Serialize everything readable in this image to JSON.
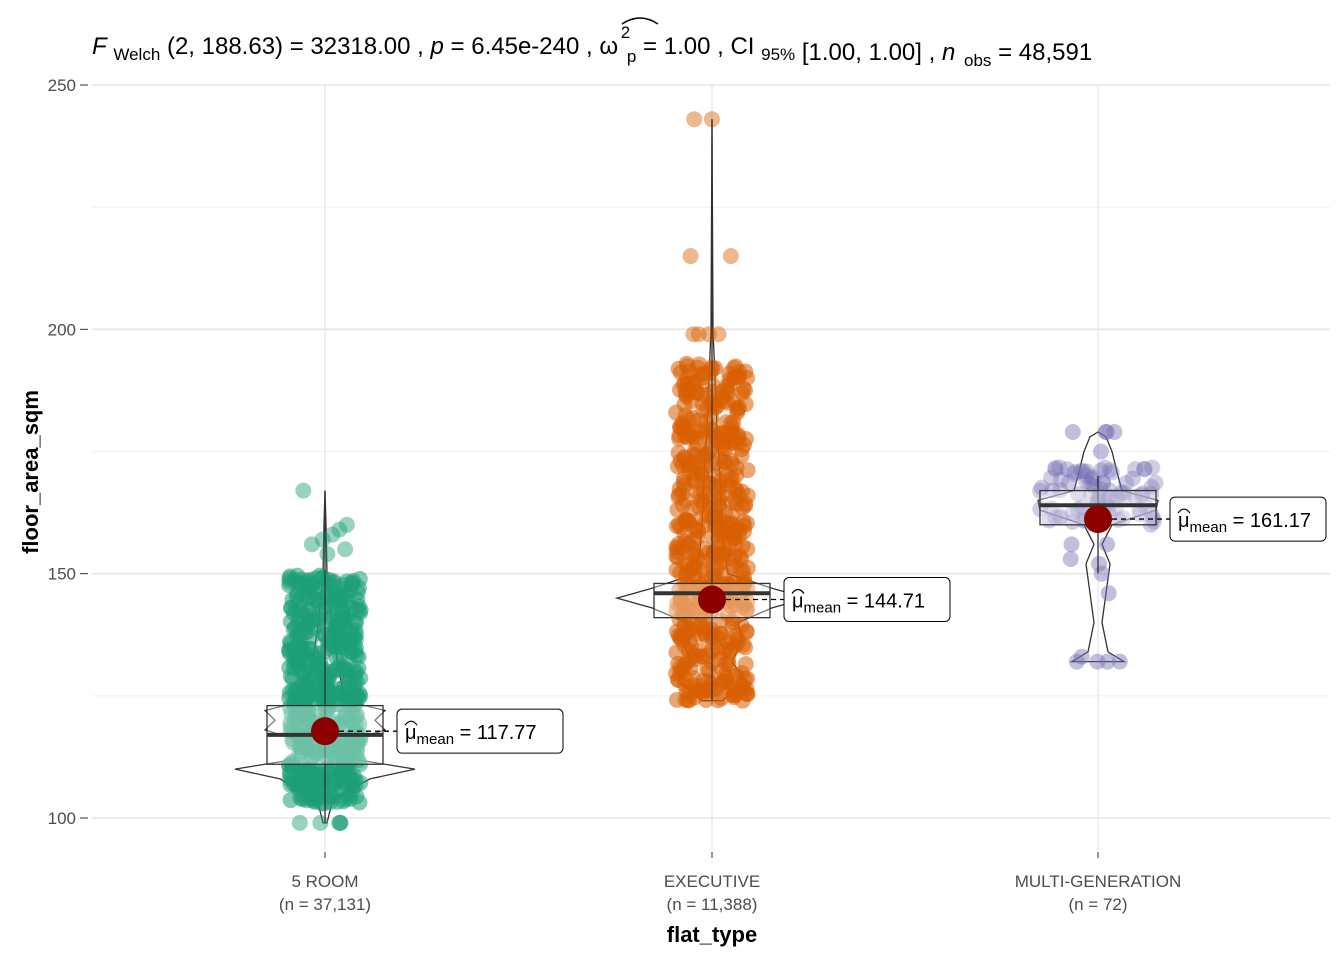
{
  "chart_data": {
    "type": "violin-box-scatter",
    "subtitle": {
      "stat_symbol": "F",
      "stat_subscript": "Welch",
      "df": "(2, 188.63)",
      "statistic": "32318.00",
      "p_symbol": "p",
      "p_value": "6.45e-240",
      "effsize_symbol": "ω",
      "effsize_sup": "2",
      "effsize_sub": "p",
      "effsize_value": "1.00",
      "ci_label": "CI",
      "ci_sub": "95%",
      "ci_value": "[1.00, 1.00]",
      "n_symbol": "n",
      "n_sub": "obs",
      "n_value": "48,591"
    },
    "xlabel": "flat_type",
    "ylabel": "floor_area_sqm",
    "ylim": [
      97,
      250
    ],
    "yticks": [
      100,
      150,
      200,
      250
    ],
    "grid": true,
    "categories": [
      "5 ROOM",
      "EXECUTIVE",
      "MULTI-GENERATION"
    ],
    "counts": [
      "(n = 37,131)",
      "(n = 11,388)",
      "(n = 72)"
    ],
    "colors": [
      "#1b9e77",
      "#d95f02",
      "#7570b3"
    ],
    "means": [
      117.77,
      144.71,
      161.17
    ],
    "mean_labels": [
      "117.77",
      "144.71",
      "161.17"
    ],
    "mean_label_prefix": "μ",
    "mean_label_sub": "mean",
    "boxes": [
      {
        "q1": 111,
        "median": 117,
        "q3": 123,
        "whisker_low": 99,
        "whisker_high": 167
      },
      {
        "q1": 141,
        "median": 146,
        "q3": 148,
        "whisker_low": 124,
        "whisker_high": 243
      },
      {
        "q1": 160,
        "median": 164,
        "q3": 167,
        "whisker_low": 150,
        "whisker_high": 170
      }
    ],
    "ranges": [
      {
        "low": 103,
        "high": 150
      },
      {
        "low": 124,
        "high": 193
      },
      {
        "low": 160,
        "high": 172
      }
    ],
    "outliers": [
      [
        99,
        99,
        99,
        99,
        99,
        154,
        155,
        156,
        157,
        158,
        159,
        160,
        167
      ],
      [
        199,
        199,
        199,
        199,
        215,
        215,
        243,
        243
      ],
      [
        179,
        179,
        179,
        179,
        171,
        175,
        156,
        156,
        153,
        152,
        150,
        146,
        132,
        132,
        132,
        132,
        133
      ]
    ]
  }
}
